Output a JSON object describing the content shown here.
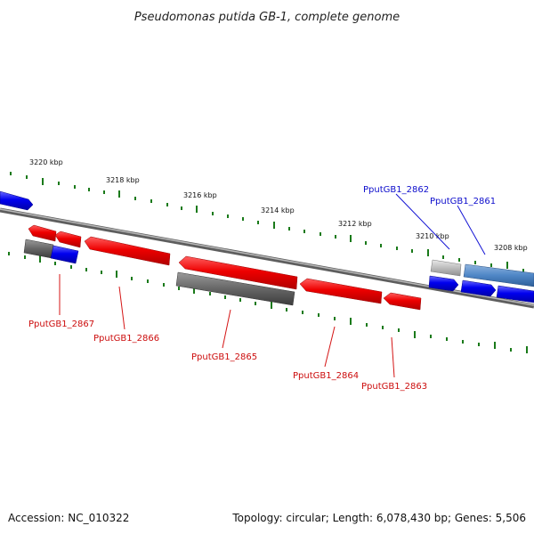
{
  "title": "Pseudomonas putida GB-1, complete genome",
  "footer": {
    "accession": "Accession: NC_010322",
    "topology": "Topology: circular; Length: 6,078,430 bp; Genes: 5,506"
  },
  "ruler": [
    {
      "label": "3220 kbp"
    },
    {
      "label": "3218 kbp"
    },
    {
      "label": "3216 kbp"
    },
    {
      "label": "3214 kbp"
    },
    {
      "label": "3212 kbp"
    },
    {
      "label": "3210 kbp"
    },
    {
      "label": "3208 kbp"
    }
  ],
  "gene_labels": [
    {
      "text": "PputGB1_2862",
      "color": "#0d0dcc"
    },
    {
      "text": "PputGB1_2861",
      "color": "#0d0dcc"
    },
    {
      "text": "PputGB1_2867",
      "color": "#cc0d0d"
    },
    {
      "text": "PputGB1_2866",
      "color": "#cc0d0d"
    },
    {
      "text": "PputGB1_2865",
      "color": "#cc0d0d"
    },
    {
      "text": "PputGB1_2864",
      "color": "#cc0d0d"
    },
    {
      "text": "PputGB1_2863",
      "color": "#cc0d0d"
    }
  ],
  "colors": {
    "forward_gene": "#0000ee",
    "reverse_gene": "#ee0000",
    "pseudo_gene": "#666666",
    "rna_gene": "#4f86c6",
    "backbone": "#888888",
    "ticks": "#1a7a1a"
  }
}
